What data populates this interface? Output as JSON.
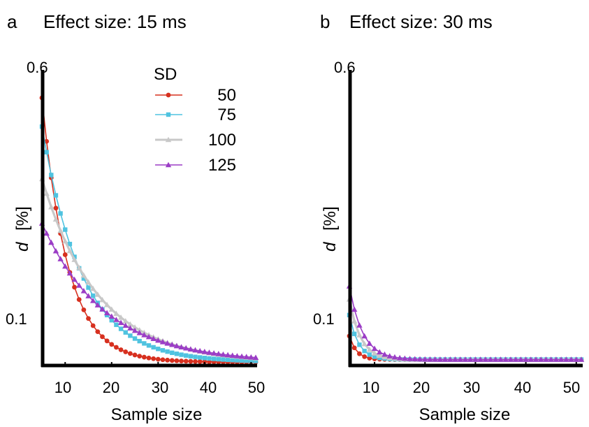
{
  "panels": [
    {
      "letter": "a",
      "title": "Effect size: 15 ms",
      "ylabel_var": "d",
      "ylabel_unit": "[%]",
      "xlabel": "Sample size",
      "y_tick_labels": [
        "0.6",
        "0.1"
      ],
      "x_tick_labels": [
        "10",
        "20",
        "30",
        "40",
        "50"
      ]
    },
    {
      "letter": "b",
      "title": "Effect size: 30 ms",
      "ylabel_var": "d",
      "ylabel_unit": "[%]",
      "xlabel": "Sample size",
      "y_tick_labels": [
        "0.6",
        "0.1"
      ],
      "x_tick_labels": [
        "10",
        "20",
        "30",
        "40",
        "50"
      ]
    }
  ],
  "legend": {
    "title": "SD",
    "entries": [
      "50",
      "75",
      "100",
      "125"
    ]
  },
  "chart_data": [
    {
      "type": "line",
      "title": "Effect size: 15 ms",
      "xlabel": "Sample size",
      "ylabel": "d [%]",
      "xlim": [
        5,
        51
      ],
      "ylim": [
        0.03,
        0.6
      ],
      "x_ticks": [
        10,
        20,
        30,
        40,
        50
      ],
      "y_ticks": [
        0.1,
        0.6
      ],
      "x": [
        5,
        51
      ],
      "series": [
        {
          "name": "50",
          "color": "#d7301f",
          "marker": "circle",
          "start": 0.54,
          "end": 0.035,
          "rate": 0.18
        },
        {
          "name": "75",
          "color": "#4fc3e0",
          "marker": "square",
          "start": 0.485,
          "end": 0.035,
          "rate": 0.115
        },
        {
          "name": "100",
          "color": "#c8c8c8",
          "marker": "triangle",
          "start": 0.385,
          "end": 0.035,
          "rate": 0.083
        },
        {
          "name": "125",
          "color": "#9b3dc6",
          "marker": "triangle",
          "start": 0.3,
          "end": 0.035,
          "rate": 0.074
        }
      ]
    },
    {
      "type": "line",
      "title": "Effect size: 30 ms",
      "xlabel": "Sample size",
      "ylabel": "d [%]",
      "xlim": [
        5,
        51
      ],
      "ylim": [
        0.03,
        0.6
      ],
      "x_ticks": [
        10,
        20,
        30,
        40,
        50
      ],
      "y_ticks": [
        0.1,
        0.6
      ],
      "x": [
        5,
        51
      ],
      "series": [
        {
          "name": "50",
          "color": "#d7301f",
          "marker": "circle",
          "start": 0.085,
          "end": 0.04,
          "rate": 0.7
        },
        {
          "name": "75",
          "color": "#4fc3e0",
          "marker": "square",
          "start": 0.125,
          "end": 0.04,
          "rate": 0.55
        },
        {
          "name": "100",
          "color": "#c8c8c8",
          "marker": "triangle",
          "start": 0.155,
          "end": 0.04,
          "rate": 0.45
        },
        {
          "name": "125",
          "color": "#9b3dc6",
          "marker": "triangle",
          "start": 0.18,
          "end": 0.04,
          "rate": 0.38
        }
      ]
    }
  ]
}
